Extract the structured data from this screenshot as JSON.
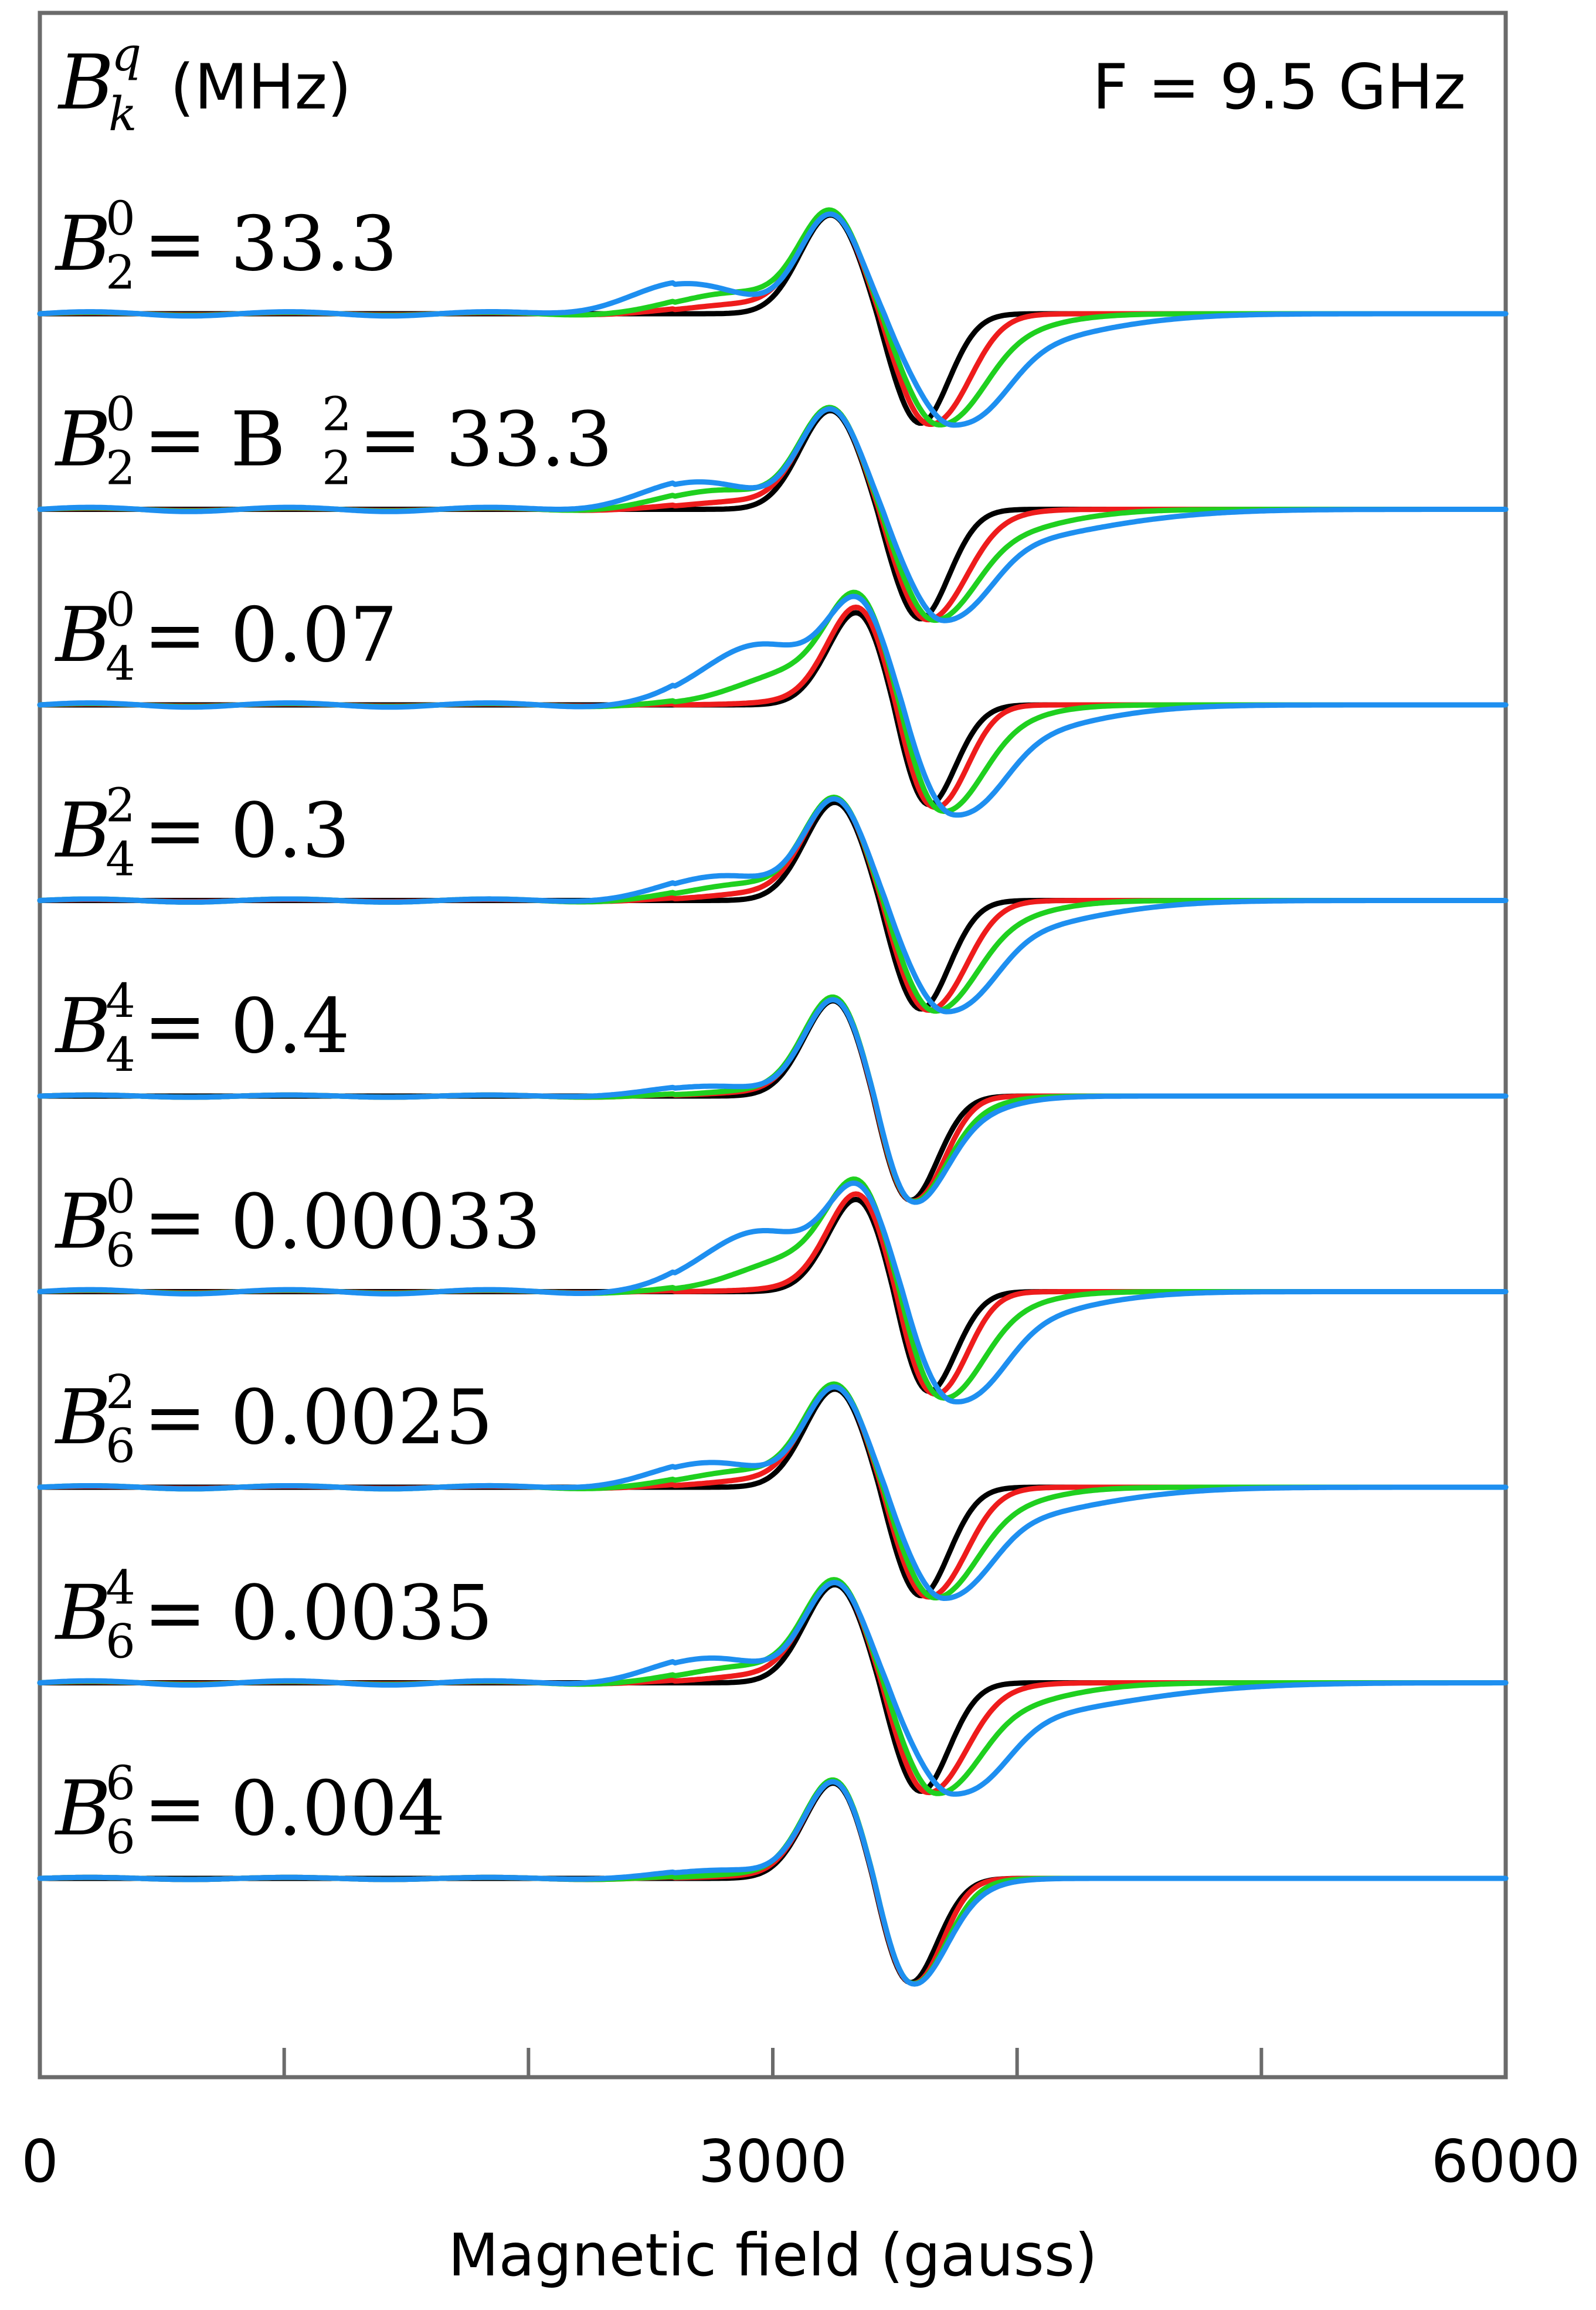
{
  "chart_data": {
    "type": "line",
    "title": "",
    "xlabel": "Magnetic field (gauss)",
    "ylabel_symbol": "B",
    "ylabel_sub": "k",
    "ylabel_sup": "q",
    "ylabel_unit": "(MHz)",
    "frequency_note": "F = 9.5 GHz",
    "xlim": [
      0,
      6000
    ],
    "x_tick_labels": [
      "0",
      "3000",
      "6000"
    ],
    "x_minor_ticks": [
      1000,
      2000,
      3000,
      4000,
      5000
    ],
    "grid": false,
    "legend": "none",
    "series_colors": [
      "#000000",
      "#ee1c1c",
      "#1fd01f",
      "#1e8ff0"
    ],
    "panels": [
      {
        "label": {
          "sub": "2",
          "sup": "0",
          "rest": " = 33.3"
        },
        "zero_field": 3320,
        "min_field": 3600,
        "series": [
          {
            "color": "#000000",
            "min_width": 0,
            "tail_width": 0,
            "shoulder": 0,
            "shoulder_field": 2800,
            "ringing": 0
          },
          {
            "color": "#ee1c1c",
            "min_width": 40,
            "tail_width": 250,
            "shoulder": 0.18,
            "shoulder_field": 2900,
            "ringing": 0.02
          },
          {
            "color": "#1fd01f",
            "min_width": 80,
            "tail_width": 450,
            "shoulder": 0.38,
            "shoulder_field": 2850,
            "ringing": 0.03
          },
          {
            "color": "#1e8ff0",
            "min_width": 140,
            "tail_width": 700,
            "shoulder": 0.55,
            "shoulder_field": 2650,
            "ringing": 0.04
          }
        ]
      },
      {
        "label": {
          "sub": "2",
          "sup": "0",
          "rest": " = B",
          "sub2": "2",
          "sup2": "2",
          "rest2": " = 33.3"
        },
        "zero_field": 3320,
        "min_field": 3600,
        "series": [
          {
            "color": "#000000",
            "min_width": 0,
            "tail_width": 0,
            "shoulder": 0,
            "shoulder_field": 2800,
            "ringing": 0
          },
          {
            "color": "#ee1c1c",
            "min_width": 30,
            "tail_width": 300,
            "shoulder": 0.15,
            "shoulder_field": 2900,
            "ringing": 0.02
          },
          {
            "color": "#1fd01f",
            "min_width": 60,
            "tail_width": 550,
            "shoulder": 0.35,
            "shoulder_field": 2800,
            "ringing": 0.03
          },
          {
            "color": "#1e8ff0",
            "min_width": 100,
            "tail_width": 800,
            "shoulder": 0.5,
            "shoulder_field": 2700,
            "ringing": 0.04
          }
        ]
      },
      {
        "label": {
          "sub": "4",
          "sup": "0",
          "rest": " = 0.07"
        },
        "zero_field": 3440,
        "min_field": 3620,
        "series": [
          {
            "color": "#000000",
            "min_width": 0,
            "tail_width": 0,
            "shoulder": 0,
            "shoulder_field": 3300,
            "ringing": 0
          },
          {
            "color": "#ee1c1c",
            "min_width": 20,
            "tail_width": 200,
            "shoulder": 0.1,
            "shoulder_field": 3250,
            "ringing": 0.02
          },
          {
            "color": "#1fd01f",
            "min_width": 60,
            "tail_width": 400,
            "shoulder": 0.6,
            "shoulder_field": 3100,
            "ringing": 0.03
          },
          {
            "color": "#1e8ff0",
            "min_width": 120,
            "tail_width": 650,
            "shoulder": 1.1,
            "shoulder_field": 2950,
            "ringing": 0.04
          }
        ]
      },
      {
        "label": {
          "sub": "4",
          "sup": "2",
          "rest": " = 0.3"
        },
        "zero_field": 3340,
        "min_field": 3600,
        "series": [
          {
            "color": "#000000",
            "min_width": 0,
            "tail_width": 0,
            "shoulder": 0,
            "shoulder_field": 2900,
            "ringing": 0
          },
          {
            "color": "#ee1c1c",
            "min_width": 30,
            "tail_width": 250,
            "shoulder": 0.15,
            "shoulder_field": 3000,
            "ringing": 0.02
          },
          {
            "color": "#1fd01f",
            "min_width": 60,
            "tail_width": 450,
            "shoulder": 0.3,
            "shoulder_field": 2900,
            "ringing": 0.03
          },
          {
            "color": "#1e8ff0",
            "min_width": 110,
            "tail_width": 700,
            "shoulder": 0.45,
            "shoulder_field": 2800,
            "ringing": 0.03
          }
        ]
      },
      {
        "label": {
          "sub": "4",
          "sup": "4",
          "rest": " = 0.4"
        },
        "zero_field": 3340,
        "min_field": 3550,
        "series": [
          {
            "color": "#000000",
            "min_width": 0,
            "tail_width": 0,
            "shoulder": 0,
            "shoulder_field": 2900,
            "ringing": 0
          },
          {
            "color": "#ee1c1c",
            "min_width": 5,
            "tail_width": 200,
            "shoulder": 0.08,
            "shoulder_field": 3000,
            "ringing": 0.02
          },
          {
            "color": "#1fd01f",
            "min_width": 10,
            "tail_width": 320,
            "shoulder": 0.12,
            "shoulder_field": 3000,
            "ringing": 0.02
          },
          {
            "color": "#1e8ff0",
            "min_width": 15,
            "tail_width": 380,
            "shoulder": 0.18,
            "shoulder_field": 2750,
            "ringing": 0.02
          }
        ]
      },
      {
        "label": {
          "sub": "6",
          "sup": "0",
          "rest": " = 0.00033"
        },
        "zero_field": 3440,
        "min_field": 3620,
        "series": [
          {
            "color": "#000000",
            "min_width": 0,
            "tail_width": 0,
            "shoulder": 0,
            "shoulder_field": 3300,
            "ringing": 0
          },
          {
            "color": "#ee1c1c",
            "min_width": 20,
            "tail_width": 200,
            "shoulder": 0.1,
            "shoulder_field": 3250,
            "ringing": 0.02
          },
          {
            "color": "#1fd01f",
            "min_width": 60,
            "tail_width": 400,
            "shoulder": 0.6,
            "shoulder_field": 3100,
            "ringing": 0.03
          },
          {
            "color": "#1e8ff0",
            "min_width": 120,
            "tail_width": 600,
            "shoulder": 1.1,
            "shoulder_field": 2950,
            "ringing": 0.04
          }
        ]
      },
      {
        "label": {
          "sub": "6",
          "sup": "2",
          "rest": " = 0.0025"
        },
        "zero_field": 3340,
        "min_field": 3600,
        "series": [
          {
            "color": "#000000",
            "min_width": 0,
            "tail_width": 0,
            "shoulder": 0,
            "shoulder_field": 2900,
            "ringing": 0
          },
          {
            "color": "#ee1c1c",
            "min_width": 30,
            "tail_width": 250,
            "shoulder": 0.15,
            "shoulder_field": 3000,
            "ringing": 0.02
          },
          {
            "color": "#1fd01f",
            "min_width": 60,
            "tail_width": 450,
            "shoulder": 0.3,
            "shoulder_field": 2900,
            "ringing": 0.03
          },
          {
            "color": "#1e8ff0",
            "min_width": 100,
            "tail_width": 750,
            "shoulder": 0.45,
            "shoulder_field": 2750,
            "ringing": 0.03
          }
        ]
      },
      {
        "label": {
          "sub": "6",
          "sup": "4",
          "rest": " = 0.0035"
        },
        "zero_field": 3340,
        "min_field": 3600,
        "series": [
          {
            "color": "#000000",
            "min_width": 0,
            "tail_width": 0,
            "shoulder": 0,
            "shoulder_field": 2900,
            "ringing": 0
          },
          {
            "color": "#ee1c1c",
            "min_width": 30,
            "tail_width": 300,
            "shoulder": 0.15,
            "shoulder_field": 3000,
            "ringing": 0.02
          },
          {
            "color": "#1fd01f",
            "min_width": 70,
            "tail_width": 550,
            "shoulder": 0.3,
            "shoulder_field": 2900,
            "ringing": 0.03
          },
          {
            "color": "#1e8ff0",
            "min_width": 140,
            "tail_width": 900,
            "shoulder": 0.45,
            "shoulder_field": 2750,
            "ringing": 0.04
          }
        ]
      },
      {
        "label": {
          "sub": "6",
          "sup": "6",
          "rest": " = 0.004"
        },
        "zero_field": 3340,
        "min_field": 3550,
        "series": [
          {
            "color": "#000000",
            "min_width": 0,
            "tail_width": 0,
            "shoulder": 0,
            "shoulder_field": 2900,
            "ringing": 0
          },
          {
            "color": "#ee1c1c",
            "min_width": 5,
            "tail_width": 150,
            "shoulder": 0.05,
            "shoulder_field": 3000,
            "ringing": 0.02
          },
          {
            "color": "#1fd01f",
            "min_width": 8,
            "tail_width": 250,
            "shoulder": 0.1,
            "shoulder_field": 3000,
            "ringing": 0.02
          },
          {
            "color": "#1e8ff0",
            "min_width": 10,
            "tail_width": 300,
            "shoulder": 0.15,
            "shoulder_field": 2800,
            "ringing": 0.02
          }
        ]
      }
    ]
  }
}
